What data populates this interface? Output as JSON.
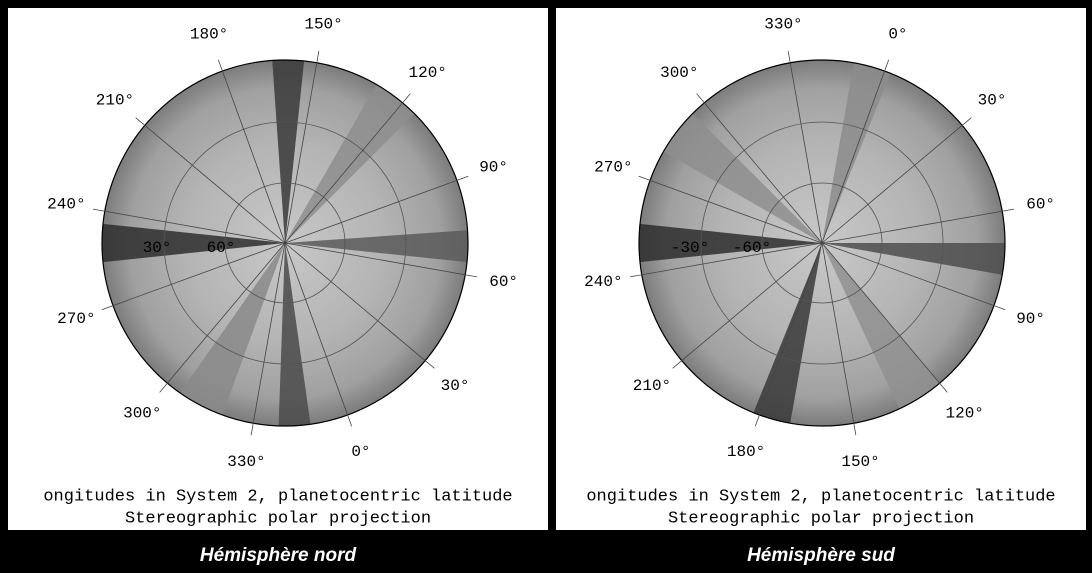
{
  "panels": [
    {
      "title": "Hémisphère nord",
      "longitude_labels": [
        "150°",
        "120°",
        "90°",
        "60°",
        "30°",
        "0°",
        "330°",
        "300°",
        "270°",
        "240°",
        "210°",
        "180°"
      ],
      "latitude_labels": [
        "30°",
        "60°"
      ],
      "caption_lines": [
        "ongitudes in System 2, planetocentric latitude",
        "Stereographic polar projection"
      ]
    },
    {
      "title": "Hémisphère sud",
      "longitude_labels": [
        "330°",
        "0°",
        "30°",
        "60°",
        "90°",
        "120°",
        "150°",
        "180°",
        "210°",
        "240°",
        "270°",
        "300°"
      ],
      "latitude_labels": [
        "-30°",
        "-60°"
      ],
      "caption_lines": [
        "ongitudes in System 2, planetocentric latitude",
        "Stereographic polar projection"
      ]
    }
  ]
}
